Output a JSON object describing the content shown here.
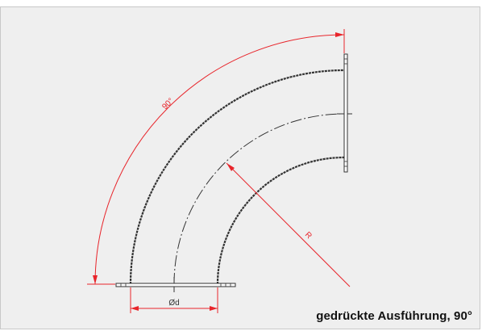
{
  "caption": "gedrückte Ausführung, 90°",
  "dimensions": {
    "angle_label": "90°",
    "radius_label": "R",
    "diameter_label": "Ød"
  },
  "colors": {
    "dimension": "#e8252b",
    "outline": "#333333",
    "background": "#efefef"
  }
}
